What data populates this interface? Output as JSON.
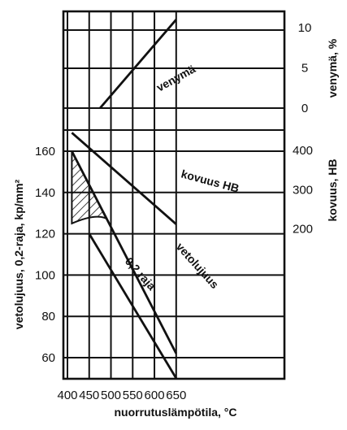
{
  "chart_data": {
    "type": "line",
    "x_axis": {
      "label": "nuorrutuslämpötila, °C",
      "range": [
        400,
        650
      ],
      "ticks": [
        "400",
        "450",
        "500",
        "550",
        "600",
        "650"
      ]
    },
    "y_axes": {
      "left": {
        "label": "vetolujuus, 0,2-raja, kp/mm²",
        "range": [
          50,
          175
        ],
        "ticks": [
          "60",
          "80",
          "100",
          "120",
          "140",
          "160"
        ]
      },
      "hardness": {
        "label": "kovuus, HB",
        "ticks": [
          "200",
          "300",
          "400"
        ]
      },
      "elongation": {
        "label": "venymä, %",
        "ticks": [
          "0",
          "5",
          "10"
        ]
      }
    },
    "series": [
      {
        "name": "venymä",
        "axis": "elongation",
        "x": [
          475,
          650
        ],
        "y": [
          0,
          11
        ]
      },
      {
        "name": "kovuus HB",
        "axis": "hardness",
        "x": [
          410,
          650
        ],
        "y": [
          445,
          212
        ]
      },
      {
        "name": "vetolujuus",
        "axis": "left",
        "x": [
          410,
          650
        ],
        "y": [
          160,
          62
        ]
      },
      {
        "name": "0,2 raja",
        "axis": "left",
        "x": [
          450,
          650
        ],
        "y": [
          120,
          50
        ]
      }
    ],
    "hatched_region": "between 410 and 490 °C, below the vetolujuus curve",
    "grid": true
  }
}
